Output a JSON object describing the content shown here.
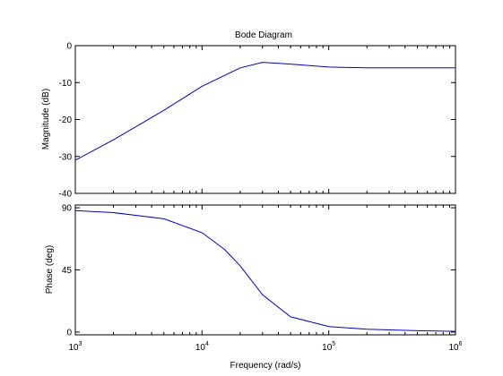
{
  "chart_data": {
    "type": "line",
    "title": "Bode Diagram",
    "xlabel": "Frequency  (rad/s)",
    "x_scale": "log",
    "xlim": [
      1000,
      1000000
    ],
    "x_tick_labels": [
      {
        "base": "10",
        "exp": "3"
      },
      {
        "base": "10",
        "exp": "4"
      },
      {
        "base": "10",
        "exp": "5"
      },
      {
        "base": "10",
        "exp": "6"
      }
    ],
    "line_color": "#0000cc",
    "panels": [
      {
        "name": "magnitude",
        "ylabel": "Magnitude (dB)",
        "ylim": [
          -40,
          0
        ],
        "yticks": [
          0,
          -10,
          -20,
          -30,
          -40
        ],
        "ytick_labels": [
          "0",
          "-10",
          "-20",
          "-30",
          "-40"
        ],
        "x": [
          1000,
          2000,
          5000,
          10000,
          20000,
          30000,
          50000,
          100000,
          200000,
          500000,
          1000000
        ],
        "values": [
          -31,
          -25.5,
          -17.5,
          -11.0,
          -6.0,
          -4.5,
          -5.0,
          -5.8,
          -6.0,
          -6.0,
          -6.0
        ]
      },
      {
        "name": "phase",
        "ylabel": "Phase (deg)",
        "ylim": [
          -2,
          92
        ],
        "yticks": [
          90,
          45,
          0
        ],
        "ytick_labels": [
          "90",
          "45",
          "0"
        ],
        "x": [
          1000,
          2000,
          5000,
          10000,
          15000,
          20000,
          30000,
          50000,
          100000,
          200000,
          500000,
          1000000
        ],
        "values": [
          88,
          86.5,
          82,
          72,
          60,
          48,
          27,
          11,
          4,
          2,
          1,
          0.5
        ]
      }
    ]
  }
}
